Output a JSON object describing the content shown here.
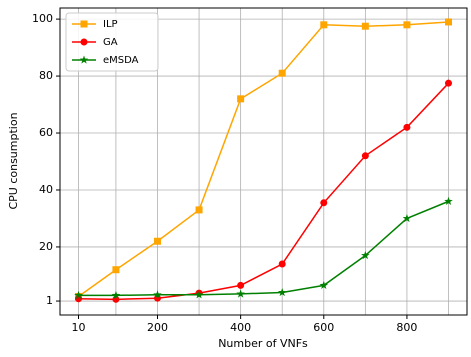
{
  "chart_data": {
    "type": "line",
    "xlabel": "Number of VNFs",
    "ylabel": "CPU consumption",
    "x": [
      10,
      100,
      200,
      300,
      400,
      500,
      600,
      700,
      800,
      900
    ],
    "series": [
      {
        "name": "ILP",
        "color": "#ffa500",
        "marker": "square",
        "values": [
          2.6,
          12,
          22,
          33,
          72,
          81,
          98,
          97.5,
          98,
          99
        ]
      },
      {
        "name": "GA",
        "color": "#ff0000",
        "marker": "circle",
        "values": [
          1.8,
          1.6,
          2,
          3.8,
          6.5,
          14,
          35.5,
          52,
          62,
          77.5
        ]
      },
      {
        "name": "eMSDA",
        "color": "#008000",
        "marker": "star",
        "values": [
          3,
          3,
          3.2,
          3.2,
          3.5,
          4,
          6.5,
          17,
          30,
          36
        ]
      }
    ],
    "xlim": [
      -34.5,
      944.5
    ],
    "xticks": [
      10,
      200,
      400,
      600,
      800
    ],
    "xgrid": [
      10,
      100,
      200,
      300,
      400,
      500,
      600,
      700,
      800,
      900
    ],
    "ylim": [
      -3.9,
      103.9
    ],
    "yticks": [
      1,
      20,
      40,
      60,
      80,
      100
    ],
    "grid": true,
    "legend": "upper-left"
  }
}
